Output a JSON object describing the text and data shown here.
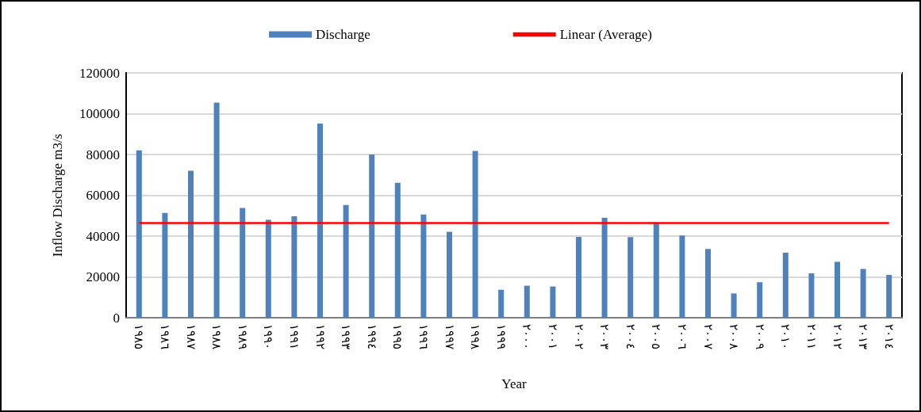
{
  "chart_data": {
    "type": "bar",
    "xlabel": "Year",
    "ylabel": "Inflow Discharge m3/s",
    "categories": [
      "١٩٨٥",
      "١٩٨٦",
      "١٩٨٧",
      "١٩٨٨",
      "١٩٨٩",
      "١٩٩٠",
      "١٩٩١",
      "١٩٩٢",
      "١٩٩٣",
      "١٩٩٤",
      "١٩٩٥",
      "١٩٩٦",
      "١٩٩٧",
      "١٩٩٨",
      "١٩٩٩",
      "٢٠٠٠",
      "٢٠٠١",
      "٢٠٠٢",
      "٢٠٠٣",
      "٢٠٠٤",
      "٢٠٠٥",
      "٢٠٠٦",
      "٢٠٠٧",
      "٢٠٠٨",
      "٢٠٠٩",
      "٢٠١٠",
      "٢٠١١",
      "٢٠١٢",
      "٢٠١٣",
      "٢٠١٤"
    ],
    "series": [
      {
        "name": "Discharge",
        "color": "#4f81bd",
        "values": [
          82000,
          51400,
          72000,
          105400,
          53800,
          48000,
          49700,
          95100,
          55200,
          80000,
          66100,
          50600,
          42100,
          81700,
          13700,
          15700,
          15300,
          39600,
          49000,
          39500,
          46600,
          40300,
          33700,
          11900,
          17400,
          31900,
          21800,
          27400,
          23900,
          21000
        ]
      },
      {
        "name": "Linear (Average)",
        "type": "line",
        "color": "#ff0000",
        "marker": "none",
        "line_style": "solid",
        "values": [
          46400,
          46400,
          46400,
          46400,
          46400,
          46400,
          46400,
          46400,
          46400,
          46400,
          46400,
          46400,
          46400,
          46400,
          46400,
          46400,
          46400,
          46400,
          46400,
          46400,
          46400,
          46400,
          46400,
          46400,
          46400,
          46400,
          46400,
          46400,
          46400,
          46400
        ]
      }
    ],
    "ylim": [
      0,
      120000
    ],
    "yticks": [
      0,
      20000,
      40000,
      60000,
      80000,
      100000,
      120000
    ],
    "grid": "y",
    "legend": "top"
  }
}
